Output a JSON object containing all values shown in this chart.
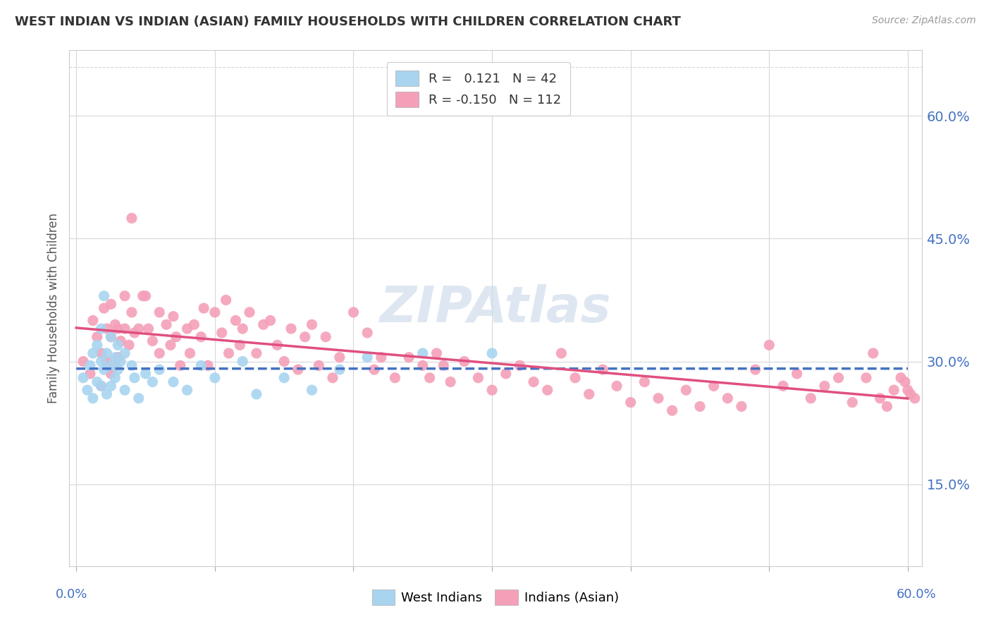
{
  "title": "WEST INDIAN VS INDIAN (ASIAN) FAMILY HOUSEHOLDS WITH CHILDREN CORRELATION CHART",
  "source": "Source: ZipAtlas.com",
  "ylabel": "Family Households with Children",
  "xlim": [
    0.0,
    0.6
  ],
  "ylim": [
    0.05,
    0.68
  ],
  "ytick_right_values": [
    0.15,
    0.3,
    0.45,
    0.6
  ],
  "r_blue": 0.121,
  "n_blue": 42,
  "r_pink": -0.15,
  "n_pink": 112,
  "color_blue_scatter": "#A8D4F0",
  "color_pink_scatter": "#F4A0B8",
  "color_blue_line": "#4472C4",
  "color_pink_line": "#E05080",
  "bg_color": "#FFFFFF",
  "grid_color": "#D8D8D8",
  "blue_scatter_x": [
    0.005,
    0.008,
    0.01,
    0.012,
    0.012,
    0.015,
    0.015,
    0.018,
    0.018,
    0.018,
    0.02,
    0.02,
    0.022,
    0.022,
    0.025,
    0.025,
    0.025,
    0.028,
    0.028,
    0.03,
    0.03,
    0.032,
    0.035,
    0.035,
    0.04,
    0.042,
    0.045,
    0.05,
    0.055,
    0.06,
    0.07,
    0.08,
    0.09,
    0.1,
    0.12,
    0.13,
    0.15,
    0.17,
    0.19,
    0.21,
    0.25,
    0.3
  ],
  "blue_scatter_y": [
    0.28,
    0.265,
    0.295,
    0.31,
    0.255,
    0.32,
    0.275,
    0.34,
    0.3,
    0.27,
    0.38,
    0.29,
    0.31,
    0.26,
    0.33,
    0.295,
    0.27,
    0.305,
    0.28,
    0.32,
    0.29,
    0.3,
    0.31,
    0.265,
    0.295,
    0.28,
    0.255,
    0.285,
    0.275,
    0.29,
    0.275,
    0.265,
    0.295,
    0.28,
    0.3,
    0.26,
    0.28,
    0.265,
    0.29,
    0.305,
    0.31,
    0.31
  ],
  "pink_scatter_x": [
    0.005,
    0.01,
    0.012,
    0.015,
    0.018,
    0.018,
    0.02,
    0.022,
    0.022,
    0.025,
    0.025,
    0.025,
    0.028,
    0.028,
    0.03,
    0.03,
    0.032,
    0.035,
    0.035,
    0.038,
    0.04,
    0.04,
    0.042,
    0.045,
    0.048,
    0.05,
    0.052,
    0.055,
    0.06,
    0.06,
    0.065,
    0.068,
    0.07,
    0.072,
    0.075,
    0.08,
    0.082,
    0.085,
    0.09,
    0.092,
    0.095,
    0.1,
    0.105,
    0.108,
    0.11,
    0.115,
    0.118,
    0.12,
    0.125,
    0.13,
    0.135,
    0.14,
    0.145,
    0.15,
    0.155,
    0.16,
    0.165,
    0.17,
    0.175,
    0.18,
    0.185,
    0.19,
    0.2,
    0.21,
    0.215,
    0.22,
    0.23,
    0.24,
    0.25,
    0.255,
    0.26,
    0.265,
    0.27,
    0.28,
    0.29,
    0.3,
    0.31,
    0.32,
    0.33,
    0.34,
    0.35,
    0.36,
    0.37,
    0.38,
    0.39,
    0.4,
    0.41,
    0.42,
    0.43,
    0.44,
    0.45,
    0.46,
    0.47,
    0.48,
    0.49,
    0.5,
    0.51,
    0.52,
    0.53,
    0.54,
    0.55,
    0.56,
    0.57,
    0.575,
    0.58,
    0.585,
    0.59,
    0.595,
    0.598,
    0.6,
    0.602,
    0.605
  ],
  "pink_scatter_y": [
    0.3,
    0.285,
    0.35,
    0.33,
    0.31,
    0.27,
    0.365,
    0.34,
    0.3,
    0.37,
    0.33,
    0.285,
    0.345,
    0.295,
    0.34,
    0.305,
    0.325,
    0.38,
    0.34,
    0.32,
    0.475,
    0.36,
    0.335,
    0.34,
    0.38,
    0.38,
    0.34,
    0.325,
    0.36,
    0.31,
    0.345,
    0.32,
    0.355,
    0.33,
    0.295,
    0.34,
    0.31,
    0.345,
    0.33,
    0.365,
    0.295,
    0.36,
    0.335,
    0.375,
    0.31,
    0.35,
    0.32,
    0.34,
    0.36,
    0.31,
    0.345,
    0.35,
    0.32,
    0.3,
    0.34,
    0.29,
    0.33,
    0.345,
    0.295,
    0.33,
    0.28,
    0.305,
    0.36,
    0.335,
    0.29,
    0.305,
    0.28,
    0.305,
    0.295,
    0.28,
    0.31,
    0.295,
    0.275,
    0.3,
    0.28,
    0.265,
    0.285,
    0.295,
    0.275,
    0.265,
    0.31,
    0.28,
    0.26,
    0.29,
    0.27,
    0.25,
    0.275,
    0.255,
    0.24,
    0.265,
    0.245,
    0.27,
    0.255,
    0.245,
    0.29,
    0.32,
    0.27,
    0.285,
    0.255,
    0.27,
    0.28,
    0.25,
    0.28,
    0.31,
    0.255,
    0.245,
    0.265,
    0.28,
    0.275,
    0.265,
    0.26,
    0.255
  ],
  "watermark_text": "ZIPAtlas",
  "watermark_color": "#C8D8E8",
  "watermark_alpha": 0.6
}
